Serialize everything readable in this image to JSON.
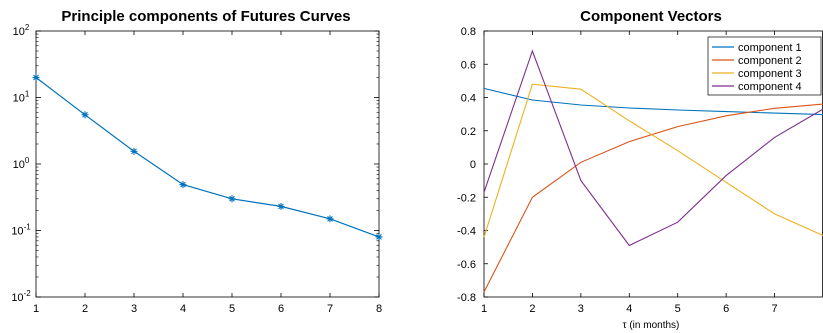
{
  "chart_data": [
    {
      "type": "line",
      "title": "Principle components of Futures Curves",
      "xlabel": "",
      "ylabel": "",
      "yscale": "log",
      "xlim": [
        1,
        8
      ],
      "ylim": [
        0.01,
        100
      ],
      "x_ticks": [
        1,
        2,
        3,
        4,
        5,
        6,
        7,
        8
      ],
      "y_ticks": [
        {
          "base": "10",
          "exp": "-2",
          "value": 0.01
        },
        {
          "base": "10",
          "exp": "-1",
          "value": 0.1
        },
        {
          "base": "10",
          "exp": "0",
          "value": 1
        },
        {
          "base": "10",
          "exp": "1",
          "value": 10
        },
        {
          "base": "10",
          "exp": "2",
          "value": 100
        }
      ],
      "marker": "*",
      "grid": false,
      "series": [
        {
          "color": "#0072BD",
          "x": [
            1,
            2,
            3,
            4,
            5,
            6,
            7,
            8
          ],
          "values": [
            20,
            5.5,
            1.55,
            0.49,
            0.3,
            0.23,
            0.15,
            0.08
          ]
        }
      ]
    },
    {
      "type": "line",
      "title": "Component Vectors",
      "xlabel": "τ (in months)",
      "ylabel": "",
      "xlim": [
        1,
        8
      ],
      "ylim": [
        -0.8,
        0.8
      ],
      "x_ticks": [
        "1",
        "2",
        "3",
        "4",
        "5",
        "6",
        "7"
      ],
      "y_ticks": [
        "-0.8",
        "-0.6",
        "-0.4",
        "-0.2",
        "0",
        "0.2",
        "0.4",
        "0.6",
        "0.8"
      ],
      "grid": false,
      "legend_position": "top-right",
      "x": [
        1,
        2,
        3,
        4,
        5,
        6,
        7,
        8
      ],
      "series": [
        {
          "name": "component 1",
          "color": "#0072BD",
          "values": [
            0.455,
            0.385,
            0.355,
            0.337,
            0.325,
            0.315,
            0.306,
            0.297
          ]
        },
        {
          "name": "component 2",
          "color": "#D95319",
          "values": [
            -0.77,
            -0.2,
            0.01,
            0.135,
            0.225,
            0.29,
            0.335,
            0.36
          ]
        },
        {
          "name": "component 3",
          "color": "#EDB120",
          "values": [
            -0.44,
            0.48,
            0.45,
            0.26,
            0.08,
            -0.11,
            -0.3,
            -0.43
          ]
        },
        {
          "name": "component 4",
          "color": "#7E2F8E",
          "values": [
            -0.17,
            0.68,
            -0.1,
            -0.49,
            -0.35,
            -0.07,
            0.16,
            0.33
          ]
        }
      ]
    }
  ]
}
